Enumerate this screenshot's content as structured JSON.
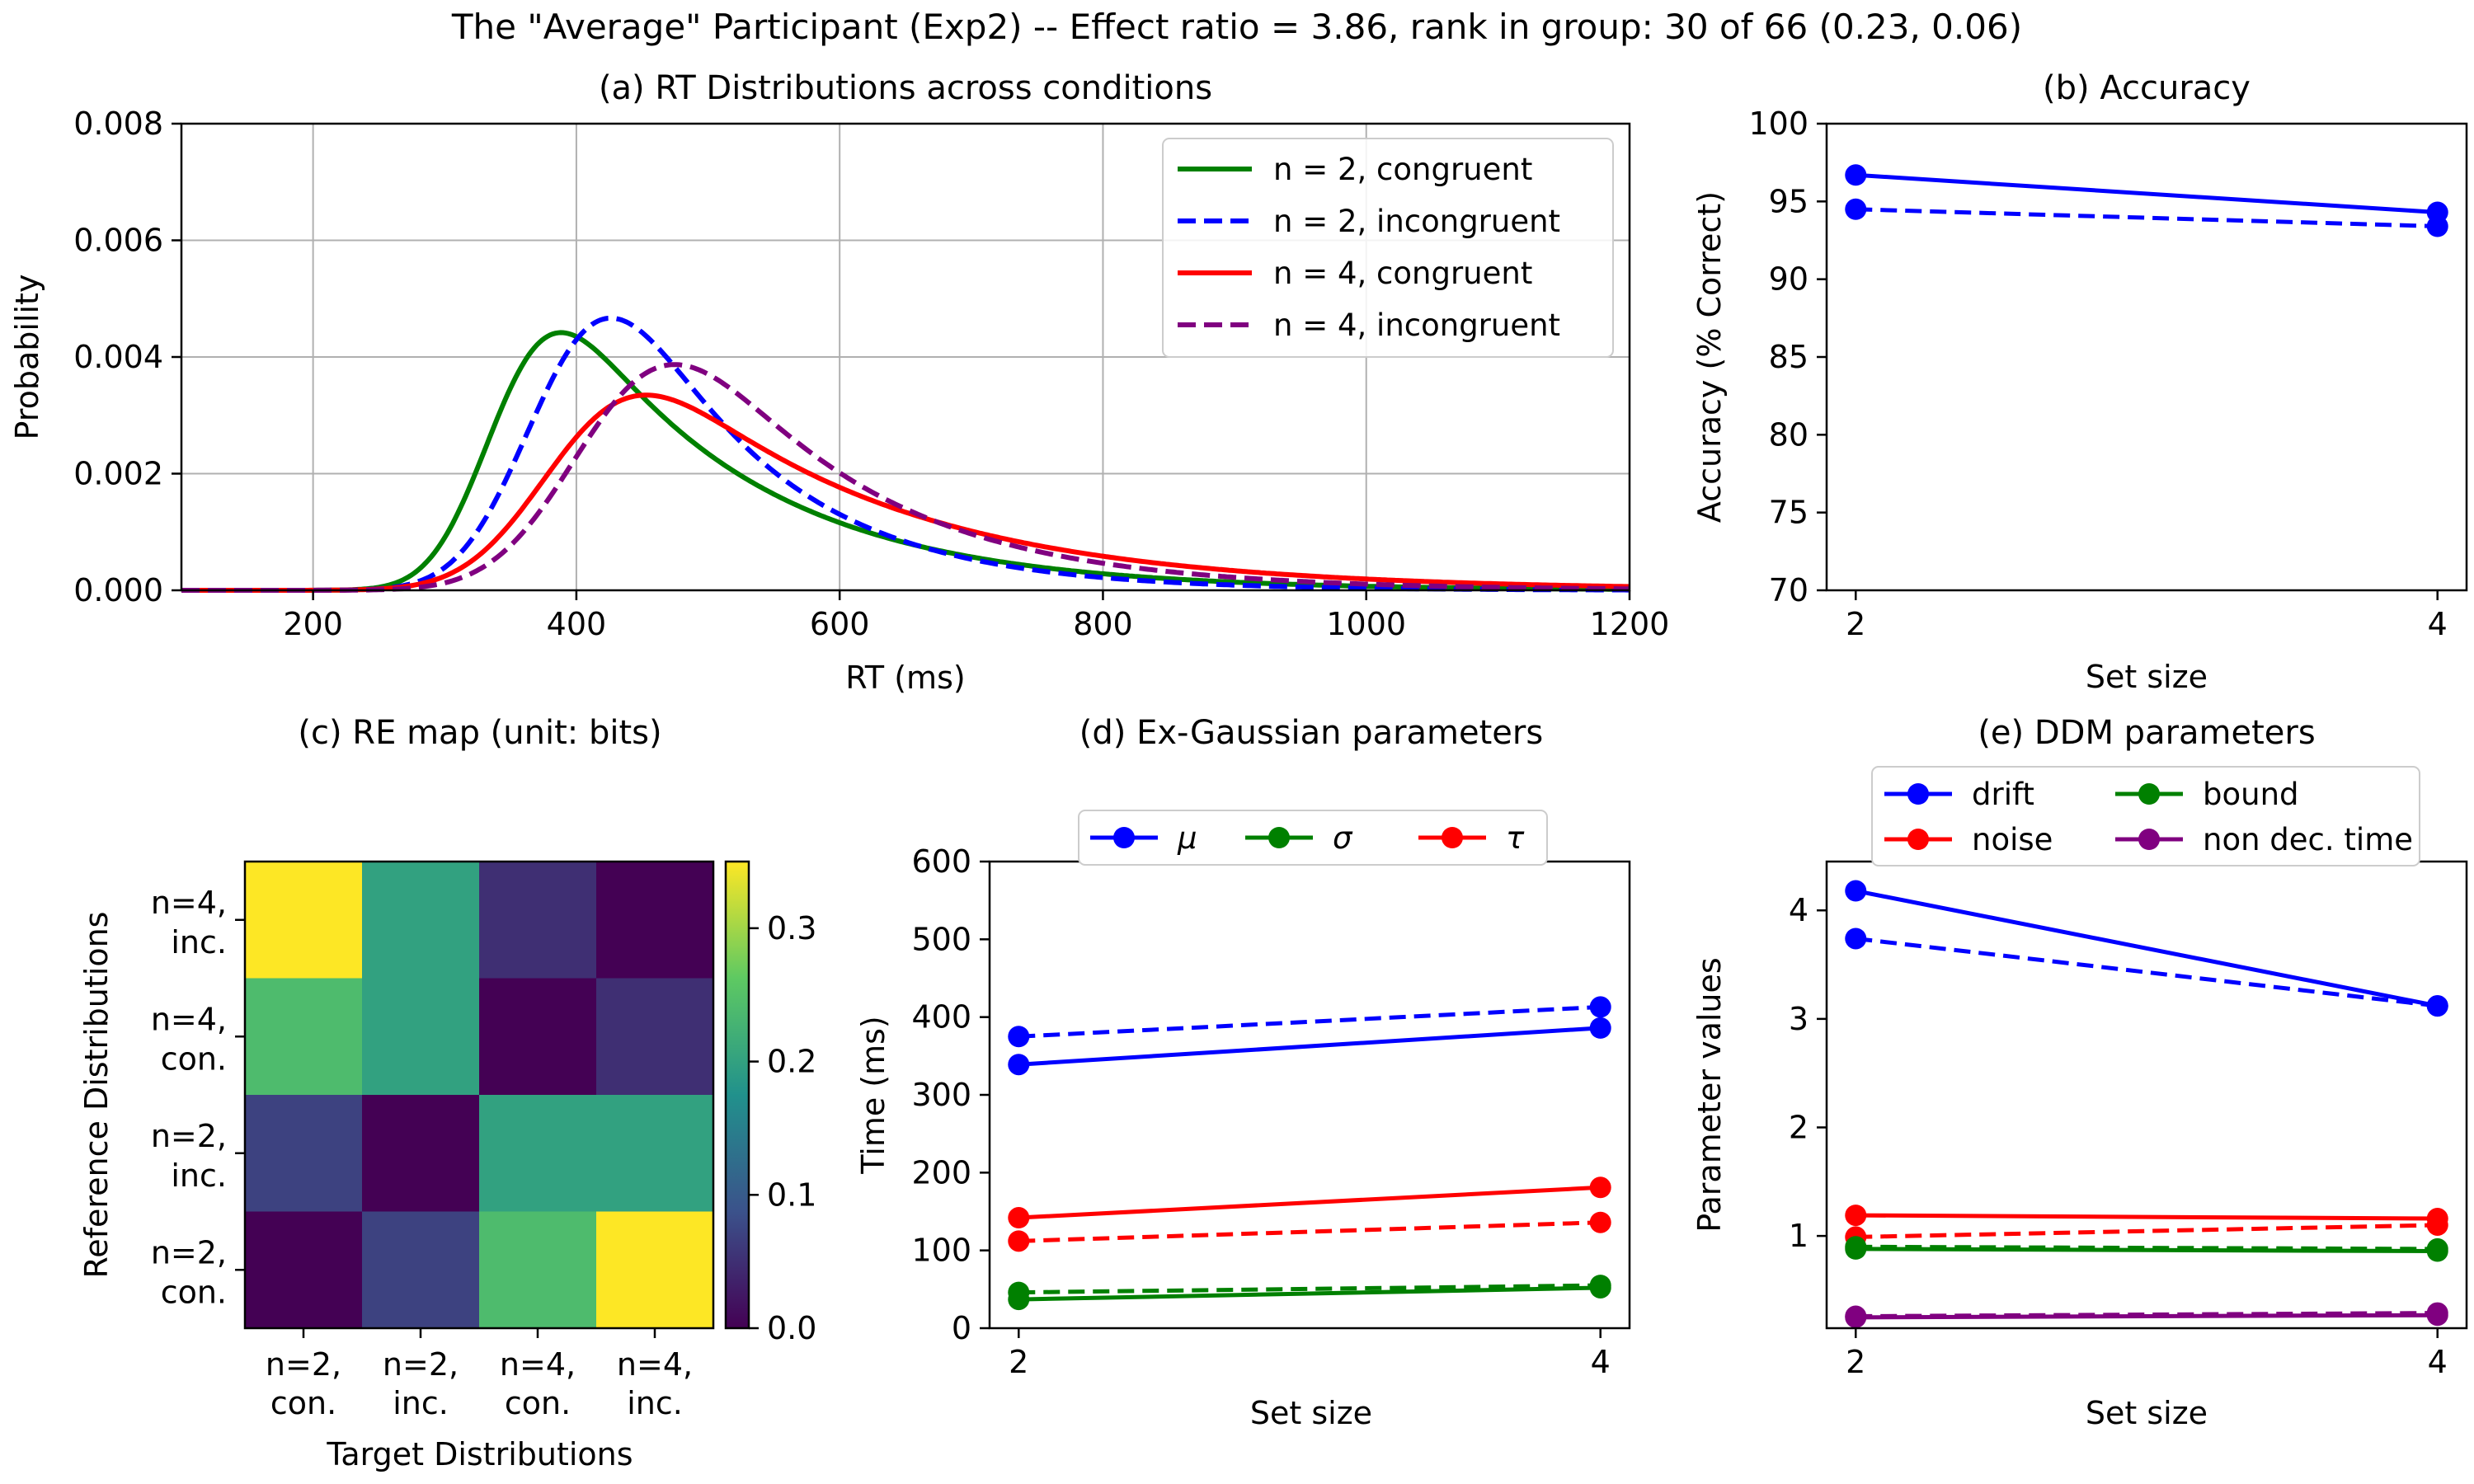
{
  "figure": {
    "suptitle": "The \"Average\" Participant (Exp2) -- Effect ratio = 3.86, rank in group: 30 of 66 (0.23, 0.06)"
  },
  "chart_data": [
    {
      "id": "a",
      "type": "line",
      "title": "(a) RT Distributions across conditions",
      "xlabel": "RT (ms)",
      "ylabel": "Probability",
      "xlim": [
        100,
        1200
      ],
      "ylim": [
        0,
        0.008
      ],
      "xticks": [
        200,
        400,
        600,
        800,
        1000,
        1200
      ],
      "xtick_labels": [
        "200",
        "400",
        "600",
        "800",
        "1000",
        "1200"
      ],
      "yticks": [
        0,
        0.002,
        0.004,
        0.006,
        0.008
      ],
      "ytick_labels": [
        "0.000",
        "0.002",
        "0.004",
        "0.006",
        "0.008"
      ],
      "grid": true,
      "legend_position": "top-right",
      "series": [
        {
          "name": "n = 2, congruent",
          "color": "#008000",
          "dash": false,
          "exgauss": {
            "mu": 339,
            "sigma": 37,
            "tau": 142
          }
        },
        {
          "name": "n = 2, incongruent",
          "color": "#0000ff",
          "dash": true,
          "exgauss": {
            "mu": 375,
            "sigma": 46,
            "tau": 112
          }
        },
        {
          "name": "n = 4, congruent",
          "color": "#ff0000",
          "dash": false,
          "exgauss": {
            "mu": 386,
            "sigma": 52,
            "tau": 181
          }
        },
        {
          "name": "n = 4, incongruent",
          "color": "#800080",
          "dash": true,
          "exgauss": {
            "mu": 413,
            "sigma": 55,
            "tau": 136
          }
        }
      ]
    },
    {
      "id": "b",
      "type": "line",
      "title": "(b) Accuracy",
      "xlabel": "Set size",
      "ylabel": "Accuracy (% Correct)",
      "x": [
        2,
        4
      ],
      "xlim": [
        1.9,
        4.1
      ],
      "ylim": [
        70,
        100
      ],
      "yticks": [
        70,
        75,
        80,
        85,
        90,
        95,
        100
      ],
      "series": [
        {
          "color": "#0000ff",
          "dash": false,
          "values": [
            96.7,
            94.3
          ]
        },
        {
          "color": "#0000ff",
          "dash": true,
          "values": [
            94.5,
            93.4
          ]
        }
      ]
    },
    {
      "id": "c",
      "type": "heatmap",
      "title": "(c) RE map (unit: bits)",
      "xlabel": "Target Distributions",
      "ylabel": "Reference Distributions",
      "x_categories": [
        [
          "n=2,",
          "con."
        ],
        [
          "n=2,",
          "inc."
        ],
        [
          "n=4,",
          "con."
        ],
        [
          "n=4,",
          "inc."
        ]
      ],
      "y_categories_top_to_bottom": [
        [
          "n=4,",
          "inc."
        ],
        [
          "n=4,",
          "con."
        ],
        [
          "n=2,",
          "inc."
        ],
        [
          "n=2,",
          "con."
        ]
      ],
      "values_top_to_bottom": [
        [
          0.35,
          0.2,
          0.05,
          0.0
        ],
        [
          0.24,
          0.2,
          0.0,
          0.05
        ],
        [
          0.07,
          0.0,
          0.2,
          0.2
        ],
        [
          0.0,
          0.07,
          0.24,
          0.35
        ]
      ],
      "colorbar": {
        "min": 0.0,
        "max": 0.35,
        "ticks": [
          0.0,
          0.1,
          0.2,
          0.3
        ],
        "tick_labels": [
          "0.0",
          "0.1",
          "0.2",
          "0.3"
        ],
        "colormap": "viridis"
      }
    },
    {
      "id": "d",
      "type": "line",
      "title": "(d) Ex-Gaussian parameters",
      "xlabel": "Set size",
      "ylabel": "Time (ms)",
      "x": [
        2,
        4
      ],
      "xlim": [
        1.9,
        4.1
      ],
      "ylim": [
        0,
        600
      ],
      "yticks": [
        0,
        100,
        200,
        300,
        400,
        500,
        600
      ],
      "legend_position": "top",
      "legend": [
        {
          "name": "μ",
          "color": "#0000ff"
        },
        {
          "name": "σ",
          "color": "#008000"
        },
        {
          "name": "τ",
          "color": "#ff0000"
        }
      ],
      "series": [
        {
          "param": "mu",
          "color": "#0000ff",
          "dash": false,
          "values": [
            339,
            386
          ]
        },
        {
          "param": "mu",
          "color": "#0000ff",
          "dash": true,
          "values": [
            375,
            413
          ]
        },
        {
          "param": "sigma",
          "color": "#008000",
          "dash": false,
          "values": [
            37,
            52
          ]
        },
        {
          "param": "sigma",
          "color": "#008000",
          "dash": true,
          "values": [
            46,
            55
          ]
        },
        {
          "param": "tau",
          "color": "#ff0000",
          "dash": false,
          "values": [
            142,
            181
          ]
        },
        {
          "param": "tau",
          "color": "#ff0000",
          "dash": true,
          "values": [
            112,
            136
          ]
        }
      ]
    },
    {
      "id": "e",
      "type": "line",
      "title": "(e) DDM parameters",
      "xlabel": "Set size",
      "ylabel": "Parameter values",
      "x": [
        2,
        4
      ],
      "xlim": [
        1.9,
        4.1
      ],
      "ylim": [
        0.15,
        4.45
      ],
      "yticks": [
        1,
        2,
        3,
        4
      ],
      "legend_position": "top",
      "legend": [
        {
          "name": "drift",
          "color": "#0000ff"
        },
        {
          "name": "bound",
          "color": "#008000"
        },
        {
          "name": "noise",
          "color": "#ff0000"
        },
        {
          "name": "non dec. time",
          "color": "#800080"
        }
      ],
      "series": [
        {
          "param": "drift",
          "color": "#0000ff",
          "dash": false,
          "values": [
            4.18,
            3.12
          ]
        },
        {
          "param": "drift",
          "color": "#0000ff",
          "dash": true,
          "values": [
            3.74,
            3.12
          ]
        },
        {
          "param": "noise",
          "color": "#ff0000",
          "dash": false,
          "values": [
            1.19,
            1.16
          ]
        },
        {
          "param": "noise",
          "color": "#ff0000",
          "dash": true,
          "values": [
            0.99,
            1.1
          ]
        },
        {
          "param": "bound",
          "color": "#008000",
          "dash": false,
          "values": [
            0.88,
            0.86
          ]
        },
        {
          "param": "bound",
          "color": "#008000",
          "dash": true,
          "values": [
            0.9,
            0.88
          ]
        },
        {
          "param": "non dec. time",
          "color": "#800080",
          "dash": false,
          "values": [
            0.25,
            0.27
          ]
        },
        {
          "param": "non dec. time",
          "color": "#800080",
          "dash": true,
          "values": [
            0.26,
            0.29
          ]
        }
      ]
    }
  ]
}
